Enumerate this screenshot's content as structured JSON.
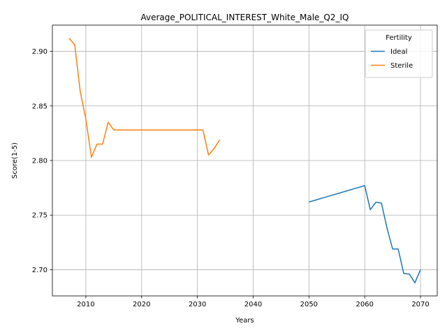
{
  "chart_data": {
    "type": "line",
    "title": "Average_POLITICAL_INTEREST_White_Male_Q2_IQ",
    "xlabel": "Years",
    "ylabel": "Score(1-5)",
    "xlim": [
      2004,
      2073
    ],
    "ylim": [
      2.676,
      2.924
    ],
    "xticks": [
      2010,
      2020,
      2030,
      2040,
      2050,
      2060,
      2070
    ],
    "yticks": [
      2.7,
      2.75,
      2.8,
      2.85,
      2.9
    ],
    "ytick_labels": [
      "2.70",
      "2.75",
      "2.80",
      "2.85",
      "2.90"
    ],
    "grid": true,
    "legend": {
      "title": "Fertility",
      "placement": "top-right"
    },
    "series": [
      {
        "name": "Ideal",
        "color": "#1f77b4",
        "x": [
          2050,
          2051,
          2052,
          2053,
          2054,
          2055,
          2056,
          2057,
          2058,
          2059,
          2060,
          2061,
          2062,
          2063,
          2064,
          2065,
          2066,
          2067,
          2068,
          2069,
          2070
        ],
        "y": [
          2.762,
          2.7635,
          2.765,
          2.7665,
          2.768,
          2.7695,
          2.771,
          2.7725,
          2.774,
          2.7755,
          2.777,
          2.755,
          2.7618,
          2.761,
          2.738,
          2.719,
          2.719,
          2.6965,
          2.696,
          2.688,
          2.7
        ]
      },
      {
        "name": "Sterile",
        "color": "#ff7f0e",
        "x": [
          2007,
          2008,
          2009,
          2010,
          2011,
          2012,
          2013,
          2014,
          2015,
          2016,
          2017,
          2018,
          2019,
          2020,
          2021,
          2022,
          2023,
          2024,
          2025,
          2026,
          2027,
          2028,
          2029,
          2030,
          2031,
          2032,
          2033,
          2034
        ],
        "y": [
          2.912,
          2.906,
          2.863,
          2.838,
          2.803,
          2.815,
          2.815,
          2.835,
          2.828,
          2.828,
          2.828,
          2.828,
          2.828,
          2.828,
          2.828,
          2.828,
          2.828,
          2.828,
          2.828,
          2.828,
          2.828,
          2.828,
          2.828,
          2.828,
          2.828,
          2.805,
          2.811,
          2.819
        ]
      }
    ]
  }
}
